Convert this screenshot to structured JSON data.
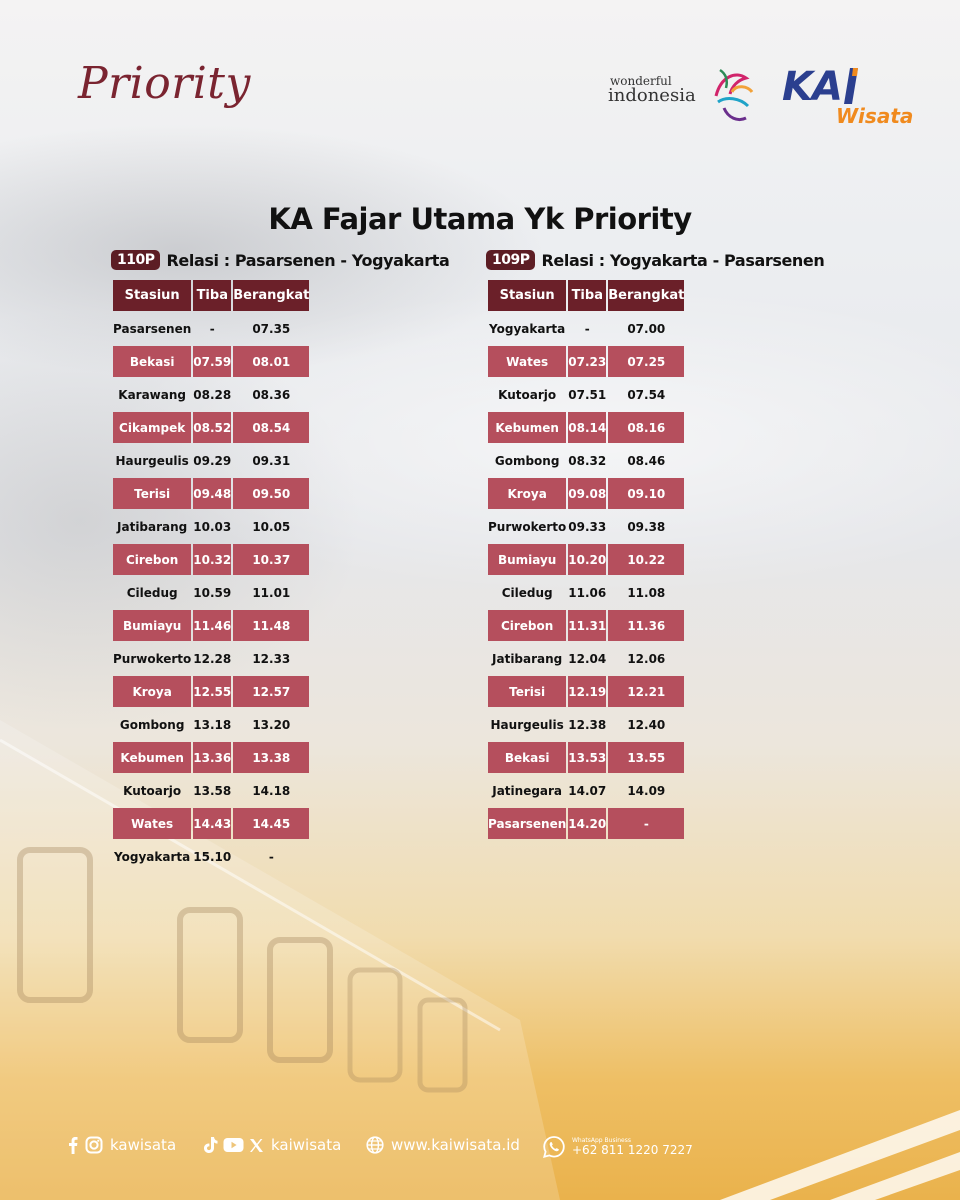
{
  "header": {
    "brand_left": "Priority",
    "wi_small": "wonderful",
    "wi_big": "indonesia",
    "kai_text": "KA",
    "kai_sub": "Wisata"
  },
  "title": "KA Fajar Utama Yk Priority",
  "columns": [
    "Stasiun",
    "Tiba",
    "Berangkat"
  ],
  "routes": [
    {
      "code": "110P",
      "relasi": "Relasi : Pasarsenen - Yogyakarta",
      "rows": [
        [
          "Pasarsenen",
          "-",
          "07.35"
        ],
        [
          "Bekasi",
          "07.59",
          "08.01"
        ],
        [
          "Karawang",
          "08.28",
          "08.36"
        ],
        [
          "Cikampek",
          "08.52",
          "08.54"
        ],
        [
          "Haurgeulis",
          "09.29",
          "09.31"
        ],
        [
          "Terisi",
          "09.48",
          "09.50"
        ],
        [
          "Jatibarang",
          "10.03",
          "10.05"
        ],
        [
          "Cirebon",
          "10.32",
          "10.37"
        ],
        [
          "Ciledug",
          "10.59",
          "11.01"
        ],
        [
          "Bumiayu",
          "11.46",
          "11.48"
        ],
        [
          "Purwokerto",
          "12.28",
          "12.33"
        ],
        [
          "Kroya",
          "12.55",
          "12.57"
        ],
        [
          "Gombong",
          "13.18",
          "13.20"
        ],
        [
          "Kebumen",
          "13.36",
          "13.38"
        ],
        [
          "Kutoarjo",
          "13.58",
          "14.18"
        ],
        [
          "Wates",
          "14.43",
          "14.45"
        ],
        [
          "Yogyakarta",
          "15.10",
          "-"
        ]
      ]
    },
    {
      "code": "109P",
      "relasi": "Relasi : Yogyakarta - Pasarsenen",
      "rows": [
        [
          "Yogyakarta",
          "-",
          "07.00"
        ],
        [
          "Wates",
          "07.23",
          "07.25"
        ],
        [
          "Kutoarjo",
          "07.51",
          "07.54"
        ],
        [
          "Kebumen",
          "08.14",
          "08.16"
        ],
        [
          "Gombong",
          "08.32",
          "08.46"
        ],
        [
          "Kroya",
          "09.08",
          "09.10"
        ],
        [
          "Purwokerto",
          "09.33",
          "09.38"
        ],
        [
          "Bumiayu",
          "10.20",
          "10.22"
        ],
        [
          "Ciledug",
          "11.06",
          "11.08"
        ],
        [
          "Cirebon",
          "11.31",
          "11.36"
        ],
        [
          "Jatibarang",
          "12.04",
          "12.06"
        ],
        [
          "Terisi",
          "12.19",
          "12.21"
        ],
        [
          "Haurgeulis",
          "12.38",
          "12.40"
        ],
        [
          "Bekasi",
          "13.53",
          "13.55"
        ],
        [
          "Jatinegara",
          "14.07",
          "14.09"
        ],
        [
          "Pasarsenen",
          "14.20",
          "-"
        ]
      ]
    }
  ],
  "footer": {
    "social_1": "kawisata",
    "social_2": "kaiwisata",
    "website": "www.kaiwisata.id",
    "wa_label": "WhatsApp Business",
    "wa_number": "+62 811 1220 7227",
    "icons": [
      "facebook-icon",
      "instagram-icon",
      "tiktok-icon",
      "youtube-icon",
      "x-icon",
      "globe-icon",
      "whatsapp-icon"
    ]
  },
  "colors": {
    "header_cell": "#6b2029",
    "alt_row": "#b54f5d",
    "badge": "#5c1d24",
    "brand": "#7a2430",
    "kai_blue": "#2b3f8f",
    "kai_orange": "#f08a1e"
  }
}
